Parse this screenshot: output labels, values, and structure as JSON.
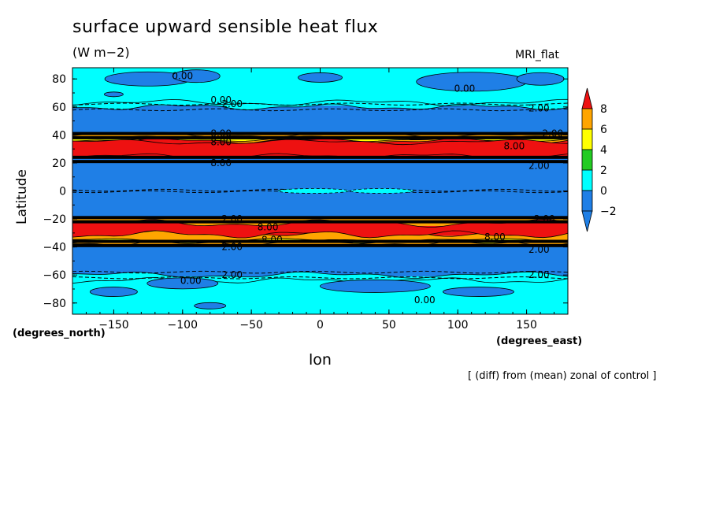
{
  "header": {
    "title": "surface upward sensible heat flux",
    "units": "(W m−2)",
    "model": "MRI_flat"
  },
  "axes": {
    "xlabel": "lon",
    "ylabel": "Latitude",
    "x_unit_left": "(degrees_north)",
    "x_unit_right": "(degrees_east)"
  },
  "footnote": "[ (diff) from (mean) zonal of control ]",
  "chart_data": {
    "type": "heatmap",
    "title": "surface upward sensible heat flux",
    "subtitle": "(W m−2)",
    "xlabel": "lon",
    "ylabel": "Latitude",
    "xlim": [
      -180,
      180
    ],
    "ylim": [
      -88,
      88
    ],
    "x_ticks": [
      -150,
      -100,
      -50,
      0,
      50,
      100,
      150
    ],
    "y_ticks": [
      80,
      60,
      40,
      20,
      0,
      -20,
      -40,
      -60,
      -80
    ],
    "colorbar": {
      "levels": [
        8,
        6,
        4,
        2,
        0,
        -2
      ],
      "colors": {
        "below_-2": "#1f7fe6",
        "-2_0": "#1f7fe6",
        "0_2": "#00ffff",
        "2_4": "#22cc22",
        "4_6": "#ffff00",
        "6_8": "#ffa500",
        "above_8": "#ee1111"
      }
    },
    "zonal_bands": [
      {
        "lat_from": 88,
        "lat_to": 61,
        "range": "0 to 2"
      },
      {
        "lat_from": 61,
        "lat_to": 40,
        "range": "-2 to 0"
      },
      {
        "lat_from": 40,
        "lat_to": 37,
        "range": "2 to 6"
      },
      {
        "lat_from": 37,
        "lat_to": 24,
        "range": "above 8"
      },
      {
        "lat_from": 24,
        "lat_to": -20,
        "range": "-2 to 0"
      },
      {
        "lat_from": -20,
        "lat_to": -25,
        "range": "6 to 8"
      },
      {
        "lat_from": -25,
        "lat_to": -32,
        "range": "above 8"
      },
      {
        "lat_from": -32,
        "lat_to": -38,
        "range": "6 to 8"
      },
      {
        "lat_from": -38,
        "lat_to": -61,
        "range": "-2 to 0"
      },
      {
        "lat_from": -61,
        "lat_to": -88,
        "range": "0 to 2"
      }
    ],
    "contour_labels": [
      {
        "text": "0.00",
        "lon": -100,
        "lat": 82
      },
      {
        "text": "0.00",
        "lon": 105,
        "lat": 73
      },
      {
        "text": "0.00",
        "lon": -72,
        "lat": 65
      },
      {
        "text": "2.00",
        "lon": -64,
        "lat": 62
      },
      {
        "text": "2.00",
        "lon": 159,
        "lat": 59
      },
      {
        "text": "8.00",
        "lon": -72,
        "lat": 41
      },
      {
        "text": "2.00",
        "lon": 169,
        "lat": 41
      },
      {
        "text": "8.00",
        "lon": -72,
        "lat": 35
      },
      {
        "text": "8.00",
        "lon": 141,
        "lat": 32
      },
      {
        "text": "8.00",
        "lon": -72,
        "lat": 20
      },
      {
        "text": "2.00",
        "lon": 159,
        "lat": 18
      },
      {
        "text": "2.00",
        "lon": -64,
        "lat": -20
      },
      {
        "text": "2.00",
        "lon": 163,
        "lat": -20
      },
      {
        "text": "8.00",
        "lon": -38,
        "lat": -26
      },
      {
        "text": "8.00",
        "lon": -35,
        "lat": -35
      },
      {
        "text": "8.00",
        "lon": 127,
        "lat": -33
      },
      {
        "text": "2.00",
        "lon": -64,
        "lat": -40
      },
      {
        "text": "2.00",
        "lon": 159,
        "lat": -42
      },
      {
        "text": "2.00",
        "lon": -64,
        "lat": -60
      },
      {
        "text": "2.00",
        "lon": 159,
        "lat": -60
      },
      {
        "text": "0.00",
        "lon": -94,
        "lat": -64
      },
      {
        "text": "0.00",
        "lon": 76,
        "lat": -78
      }
    ]
  }
}
